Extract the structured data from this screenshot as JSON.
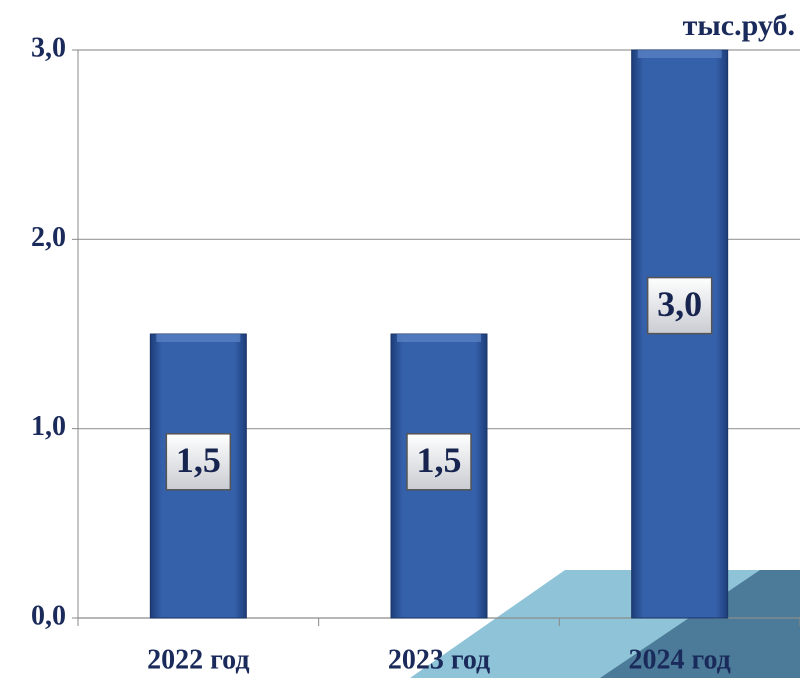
{
  "chart_data": {
    "type": "bar",
    "y_label": "тыс.руб.",
    "categories": [
      "2022 год",
      "2023 год",
      "2024 год"
    ],
    "values": [
      1.5,
      1.5,
      3.0
    ],
    "value_labels": [
      "1,5",
      "1,5",
      "3,0"
    ],
    "color": "#2f5aa3",
    "ylim": [
      0,
      3
    ],
    "yticks": [
      {
        "value": 0,
        "label": "0,0"
      },
      {
        "value": 1,
        "label": "1,0"
      },
      {
        "value": 2,
        "label": "2,0"
      },
      {
        "value": 3,
        "label": "3,0"
      }
    ],
    "grid": true
  }
}
